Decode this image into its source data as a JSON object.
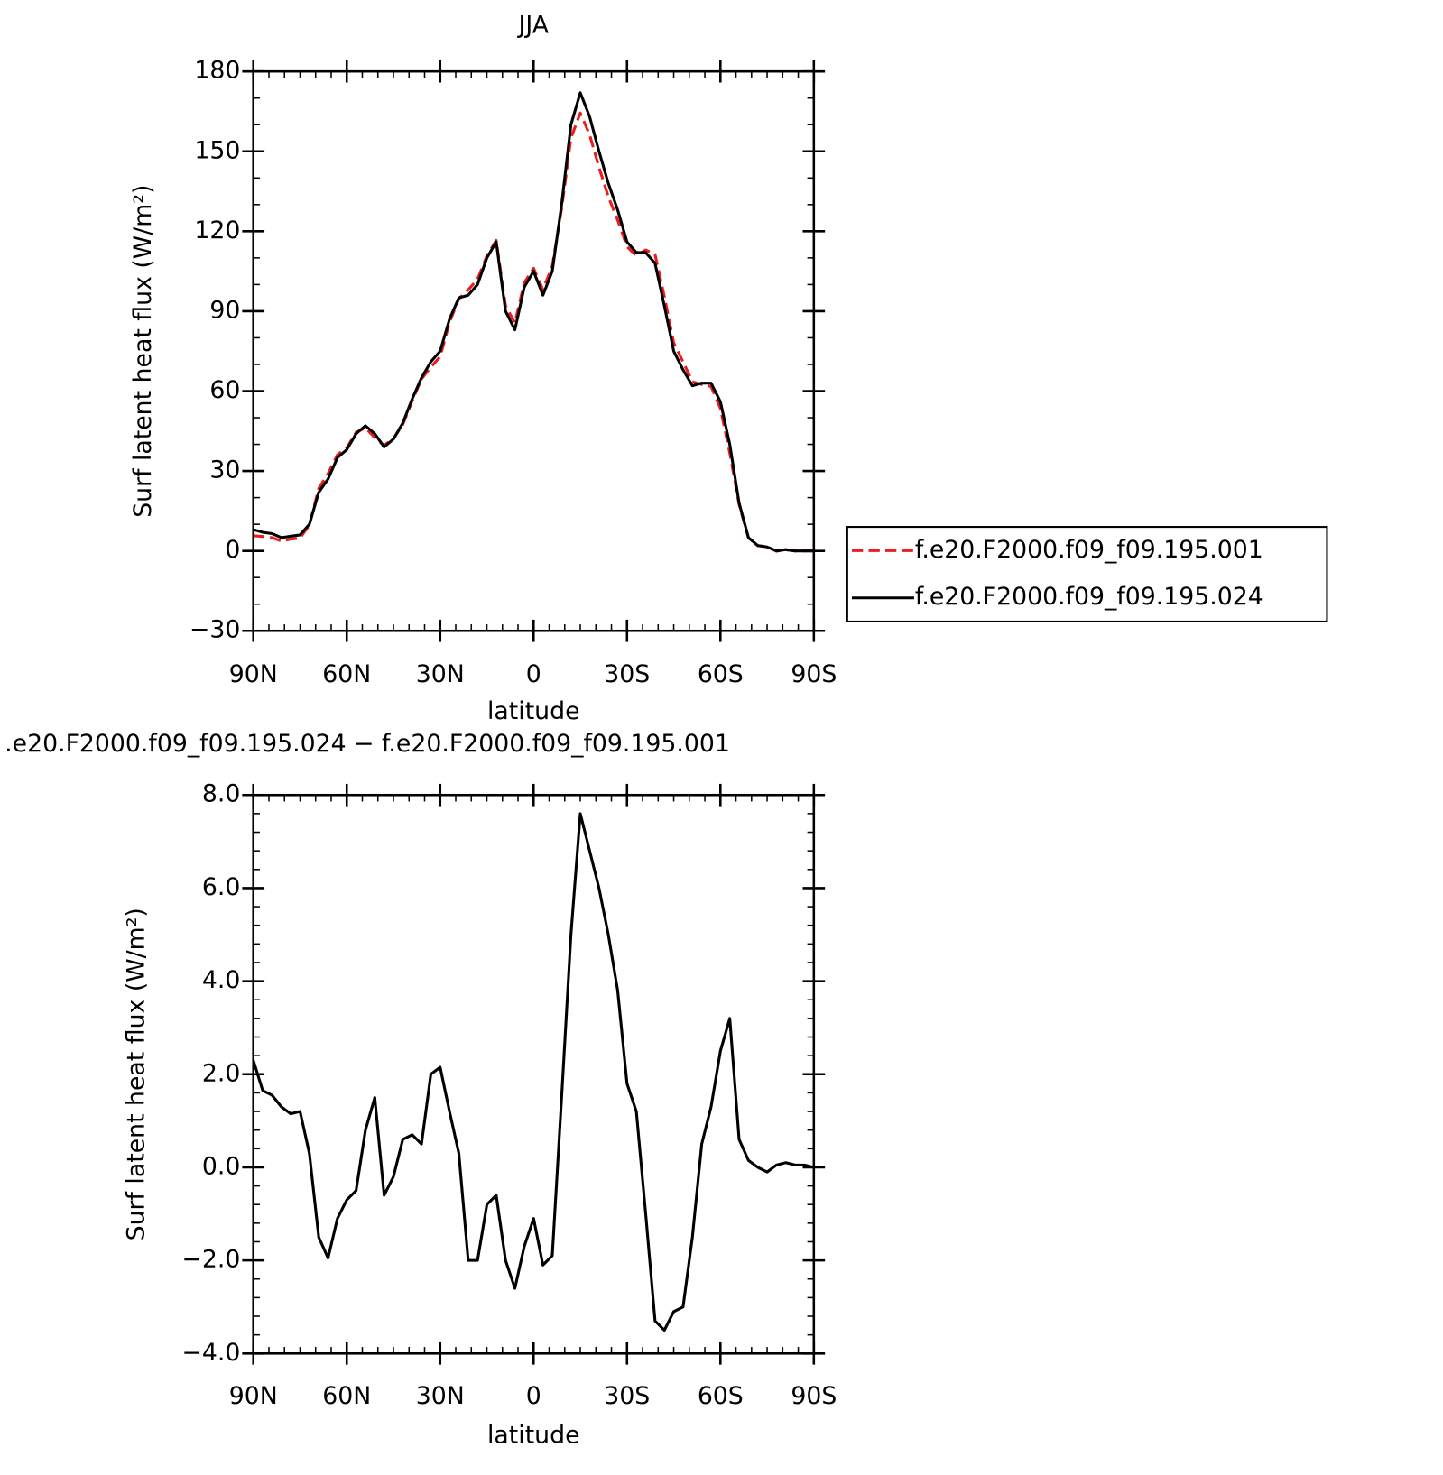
{
  "chart_data": [
    {
      "type": "line",
      "title": "JJA",
      "ylabel": "Surf latent heat flux (W/m²)",
      "xlabel": "latitude",
      "x": [
        90,
        87,
        84,
        81,
        78,
        75,
        72,
        69,
        66,
        63,
        60,
        57,
        54,
        51,
        48,
        45,
        42,
        39,
        36,
        33,
        30,
        27,
        24,
        21,
        18,
        15,
        12,
        9,
        6,
        3,
        0,
        -3,
        -6,
        -9,
        -12,
        -15,
        -18,
        -21,
        -24,
        -27,
        -30,
        -33,
        -36,
        -39,
        -42,
        -45,
        -48,
        -51,
        -54,
        -57,
        -60,
        -63,
        -66,
        -69,
        -72,
        -75,
        -78,
        -81,
        -84,
        -87,
        -90
      ],
      "series": [
        {
          "name": "f.e20.F2000.f09_f09.195.001",
          "color": "#ee1c1c",
          "dashed": true,
          "values": [
            5.7,
            5.4,
            5,
            3.7,
            4.4,
            4.8,
            9.7,
            23.5,
            29,
            36.1,
            38.7,
            44.5,
            46.2,
            42.5,
            39.6,
            42.2,
            47.4,
            56.3,
            64.5,
            69,
            72.9,
            85.8,
            94.7,
            98,
            102,
            110.8,
            116.6,
            92,
            85.6,
            100.7,
            106.1,
            98.1,
            106.9,
            128.5,
            155,
            164.4,
            156.2,
            144,
            133,
            124.2,
            114.2,
            110.8,
            113,
            111.3,
            95.5,
            78.1,
            71,
            63.5,
            62.5,
            61.7,
            53.5,
            36.8,
            17.4,
            4.9,
            2,
            1.6,
            -0.1,
            0.4,
            0,
            0,
            0
          ]
        },
        {
          "name": "f.e20.F2000.f09_f09.195.024",
          "color": "#000000",
          "dashed": false,
          "values": [
            8,
            7,
            6.5,
            5,
            5.5,
            6,
            10,
            22,
            27,
            35,
            38,
            44,
            47,
            44,
            39,
            42,
            48,
            57,
            65,
            71,
            75,
            87,
            95,
            96,
            100,
            110,
            116,
            90,
            83,
            99,
            105,
            96,
            105,
            130,
            160,
            172,
            163,
            150,
            138,
            128,
            116,
            112,
            112,
            108,
            92,
            75,
            68,
            62,
            63,
            63,
            56,
            40,
            18,
            5,
            2,
            1.5,
            0,
            0.5,
            0,
            0,
            0
          ]
        }
      ],
      "xlim": [
        90,
        -90
      ],
      "xticks": [
        {
          "value": 90,
          "label": "90N"
        },
        {
          "value": 60,
          "label": "60N"
        },
        {
          "value": 30,
          "label": "30N"
        },
        0,
        {
          "value": -30,
          "label": "30S"
        },
        {
          "value": -60,
          "label": "60S"
        },
        {
          "value": -90,
          "label": "90S"
        }
      ],
      "ylim": [
        -30,
        180
      ],
      "yticks": [
        {
          "value": -30,
          "label": "−30"
        },
        0,
        30,
        60,
        90,
        120,
        150,
        180
      ],
      "legend": "right"
    },
    {
      "type": "line",
      "title": ".e20.F2000.f09_f09.195.024 − f.e20.F2000.f09_f09.195.001",
      "ylabel": "Surf latent heat flux (W/m²)",
      "xlabel": "latitude",
      "x": [
        90,
        87,
        84,
        81,
        78,
        75,
        72,
        69,
        66,
        63,
        60,
        57,
        54,
        51,
        48,
        45,
        42,
        39,
        36,
        33,
        30,
        27,
        24,
        21,
        18,
        15,
        12,
        9,
        6,
        3,
        0,
        -3,
        -6,
        -9,
        -12,
        -15,
        -18,
        -21,
        -24,
        -27,
        -30,
        -33,
        -36,
        -39,
        -42,
        -45,
        -48,
        -51,
        -54,
        -57,
        -60,
        -63,
        -66,
        -69,
        -72,
        -75,
        -78,
        -81,
        -84,
        -87,
        -90
      ],
      "series": [
        {
          "color": "#000000",
          "dashed": false,
          "values": [
            2.3,
            1.65,
            1.55,
            1.3,
            1.15,
            1.2,
            0.3,
            -1.5,
            -1.95,
            -1.1,
            -0.7,
            -0.5,
            0.8,
            1.5,
            -0.6,
            -0.2,
            0.6,
            0.7,
            0.5,
            2,
            2.15,
            1.2,
            0.3,
            -2,
            -2,
            -0.8,
            -0.6,
            -2,
            -2.6,
            -1.7,
            -1.1,
            -2.1,
            -1.9,
            1.5,
            5,
            7.6,
            6.8,
            6,
            5,
            3.8,
            1.8,
            1.2,
            -1,
            -3.3,
            -3.5,
            -3.1,
            -3,
            -1.5,
            0.5,
            1.3,
            2.5,
            3.2,
            0.6,
            0.15,
            0,
            -0.1,
            0.05,
            0.1,
            0.05,
            0.05,
            0
          ]
        }
      ],
      "xlim": [
        90,
        -90
      ],
      "xticks": [
        {
          "value": 90,
          "label": "90N"
        },
        {
          "value": 60,
          "label": "60N"
        },
        {
          "value": 30,
          "label": "30N"
        },
        0,
        {
          "value": -30,
          "label": "30S"
        },
        {
          "value": -60,
          "label": "60S"
        },
        {
          "value": -90,
          "label": "90S"
        }
      ],
      "ylim": [
        -4,
        8
      ],
      "yticks": [
        {
          "value": -4,
          "label": "−4.0"
        },
        {
          "value": -2,
          "label": "−2.0"
        },
        {
          "value": 0,
          "label": "0.0"
        },
        {
          "value": 2,
          "label": "2.0"
        },
        {
          "value": 4,
          "label": "4.0"
        },
        {
          "value": 6,
          "label": "6.0"
        },
        {
          "value": 8,
          "label": "8.0"
        }
      ]
    }
  ]
}
